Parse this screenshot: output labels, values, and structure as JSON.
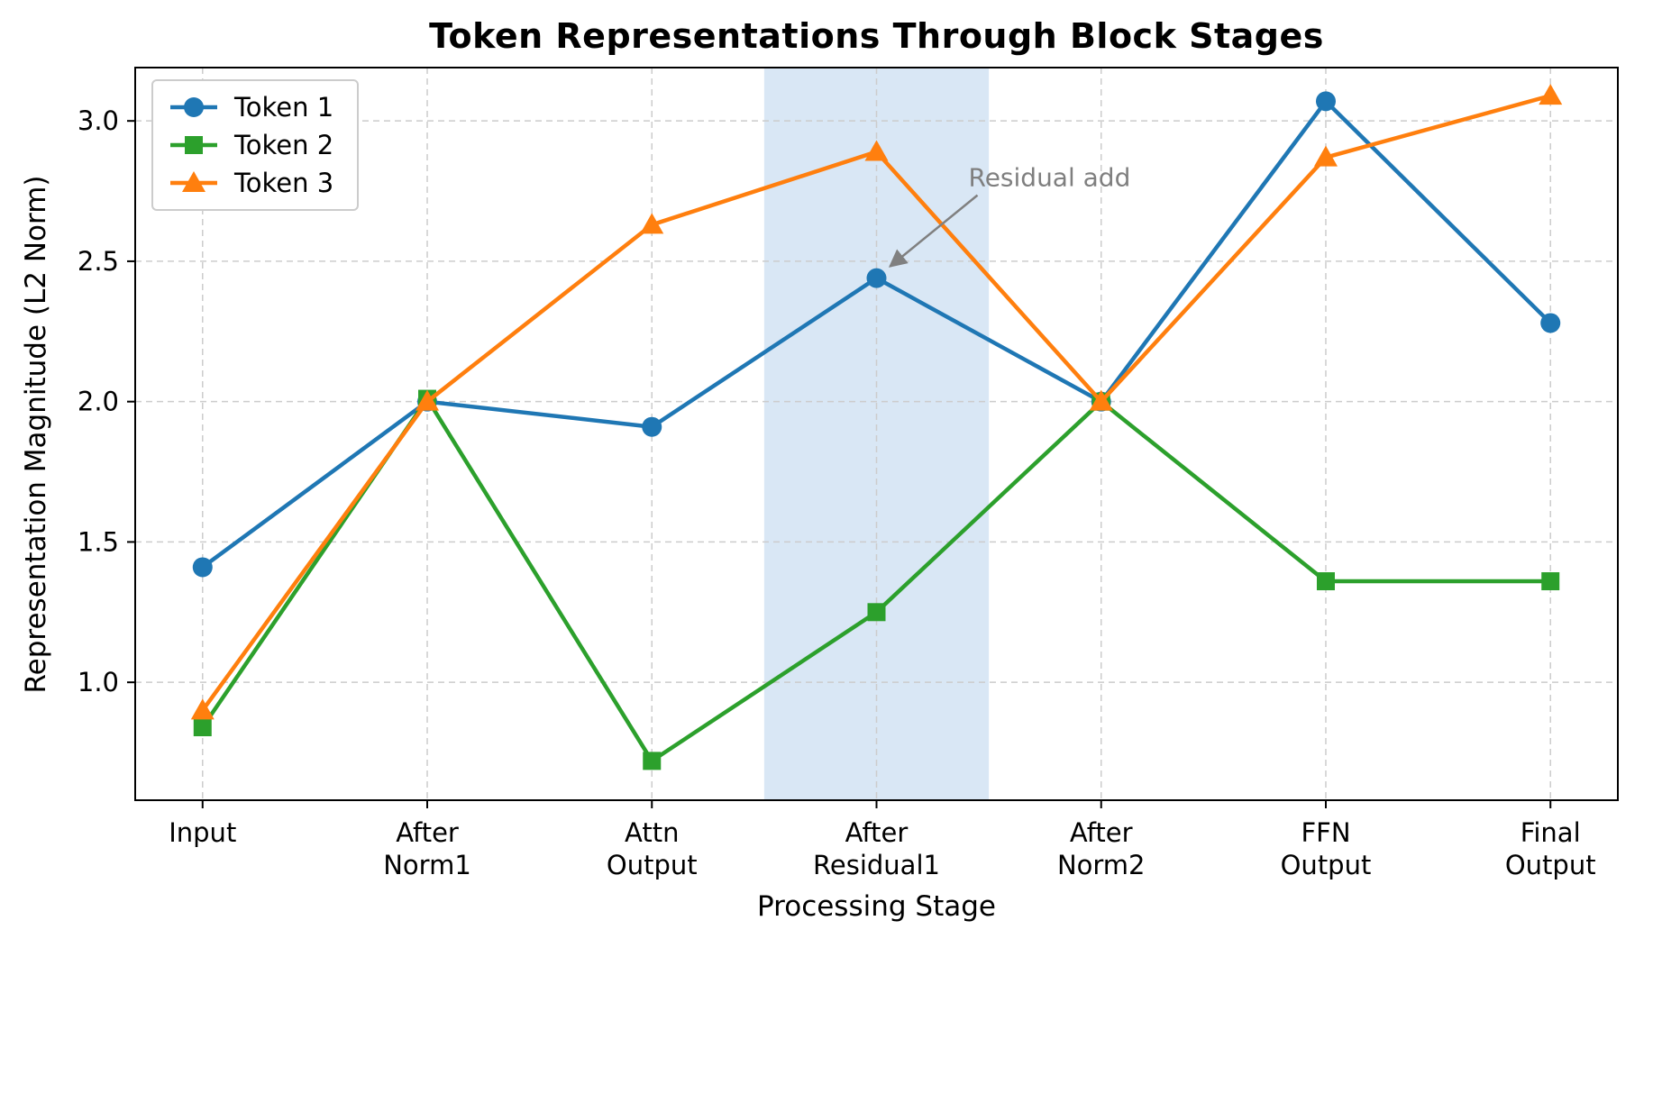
{
  "chart_data": {
    "type": "line",
    "title": "Token Representations Through Block Stages",
    "xlabel": "Processing Stage",
    "ylabel": "Representation Magnitude (L2 Norm)",
    "categories": [
      "Input",
      "After\nNorm1",
      "Attn\nOutput",
      "After\nResidual1",
      "After\nNorm2",
      "FFN\nOutput",
      "Final\nOutput"
    ],
    "series": [
      {
        "name": "Token 1",
        "marker": "circle",
        "color": "#1f77b4",
        "values": [
          1.41,
          2.0,
          1.91,
          2.44,
          2.0,
          3.07,
          2.28
        ]
      },
      {
        "name": "Token 2",
        "marker": "square",
        "color": "#2ca02c",
        "values": [
          0.84,
          2.01,
          0.72,
          1.25,
          2.0,
          1.36,
          1.36
        ]
      },
      {
        "name": "Token 3",
        "marker": "triangle",
        "color": "#ff7f0e",
        "values": [
          0.9,
          2.0,
          2.63,
          2.89,
          2.0,
          2.87,
          3.09
        ]
      }
    ],
    "ylim": [
      0.58,
      3.19
    ],
    "yticks": [
      1.0,
      1.5,
      2.0,
      2.5,
      3.0
    ],
    "grid": true,
    "grid_style": "dashed",
    "legend_position": "upper left",
    "highlight_band": {
      "x_start": 2.5,
      "x_end": 3.5,
      "color": "#d9e7f5"
    },
    "annotation": {
      "text": "Residual add",
      "target_series": "Token 1",
      "target_x": 3,
      "target_y": 2.44,
      "color": "#808080"
    }
  }
}
